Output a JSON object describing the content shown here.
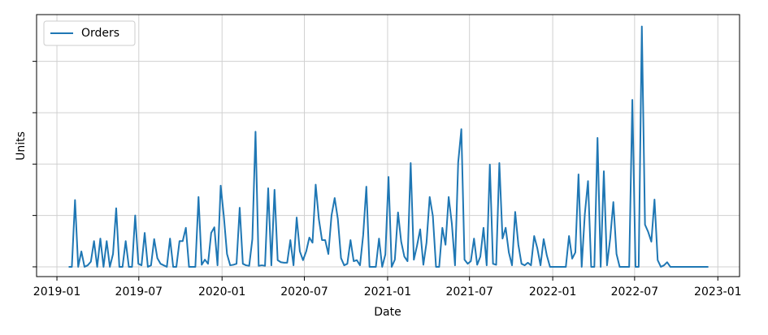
{
  "chart_data": {
    "type": "line",
    "xlabel": "Date",
    "ylabel": "Units",
    "grid": true,
    "legend": "upper left",
    "ytick_labels": false,
    "xlim": [
      "2018-11-17",
      "2023-02-18"
    ],
    "xticks": [
      {
        "value": "2019-01-01",
        "label": "2019-01"
      },
      {
        "value": "2019-07-01",
        "label": "2019-07"
      },
      {
        "value": "2020-01-01",
        "label": "2020-01"
      },
      {
        "value": "2020-07-01",
        "label": "2020-07"
      },
      {
        "value": "2021-01-01",
        "label": "2021-01"
      },
      {
        "value": "2021-07-01",
        "label": "2021-07"
      },
      {
        "value": "2022-01-01",
        "label": "2022-01"
      },
      {
        "value": "2022-07-01",
        "label": "2022-07"
      },
      {
        "value": "2023-01-01",
        "label": "2023-01"
      }
    ],
    "ylim": [
      -1.9,
      49.1
    ],
    "yticks": [
      0,
      10,
      20,
      30,
      40
    ],
    "x": [
      "2019-01-27",
      "2019-02-03",
      "2019-02-10",
      "2019-02-17",
      "2019-02-24",
      "2019-03-03",
      "2019-03-10",
      "2019-03-17",
      "2019-03-24",
      "2019-03-31",
      "2019-04-07",
      "2019-04-14",
      "2019-04-21",
      "2019-04-28",
      "2019-05-05",
      "2019-05-12",
      "2019-05-19",
      "2019-05-26",
      "2019-06-02",
      "2019-06-09",
      "2019-06-16",
      "2019-06-23",
      "2019-06-30",
      "2019-07-07",
      "2019-07-14",
      "2019-07-21",
      "2019-07-28",
      "2019-08-04",
      "2019-08-11",
      "2019-08-18",
      "2019-08-25",
      "2019-09-01",
      "2019-09-08",
      "2019-09-15",
      "2019-09-22",
      "2019-09-29",
      "2019-10-06",
      "2019-10-13",
      "2019-10-20",
      "2019-10-27",
      "2019-11-03",
      "2019-11-10",
      "2019-11-17",
      "2019-11-24",
      "2019-12-01",
      "2019-12-08",
      "2019-12-15",
      "2019-12-22",
      "2019-12-29",
      "2020-01-05",
      "2020-01-12",
      "2020-01-19",
      "2020-01-26",
      "2020-02-02",
      "2020-02-09",
      "2020-02-16",
      "2020-02-23",
      "2020-03-01",
      "2020-03-08",
      "2020-03-15",
      "2020-03-22",
      "2020-03-29",
      "2020-04-05",
      "2020-04-12",
      "2020-04-19",
      "2020-04-26",
      "2020-05-03",
      "2020-05-10",
      "2020-05-17",
      "2020-05-24",
      "2020-05-31",
      "2020-06-07",
      "2020-06-14",
      "2020-06-21",
      "2020-06-28",
      "2020-07-05",
      "2020-07-12",
      "2020-07-19",
      "2020-07-26",
      "2020-08-02",
      "2020-08-09",
      "2020-08-16",
      "2020-08-23",
      "2020-08-30",
      "2020-09-06",
      "2020-09-13",
      "2020-09-20",
      "2020-09-27",
      "2020-10-04",
      "2020-10-11",
      "2020-10-18",
      "2020-10-25",
      "2020-11-01",
      "2020-11-08",
      "2020-11-15",
      "2020-11-22",
      "2020-11-29",
      "2020-12-06",
      "2020-12-13",
      "2020-12-20",
      "2020-12-27",
      "2021-01-03",
      "2021-01-10",
      "2021-01-17",
      "2021-01-24",
      "2021-01-31",
      "2021-02-07",
      "2021-02-14",
      "2021-02-21",
      "2021-02-28",
      "2021-03-07",
      "2021-03-14",
      "2021-03-21",
      "2021-03-28",
      "2021-04-04",
      "2021-04-11",
      "2021-04-18",
      "2021-04-25",
      "2021-05-02",
      "2021-05-09",
      "2021-05-16",
      "2021-05-23",
      "2021-05-30",
      "2021-06-06",
      "2021-06-13",
      "2021-06-20",
      "2021-06-27",
      "2021-07-04",
      "2021-07-11",
      "2021-07-18",
      "2021-07-25",
      "2021-08-01",
      "2021-08-08",
      "2021-08-15",
      "2021-08-22",
      "2021-08-29",
      "2021-09-05",
      "2021-09-12",
      "2021-09-19",
      "2021-09-26",
      "2021-10-03",
      "2021-10-10",
      "2021-10-17",
      "2021-10-24",
      "2021-10-31",
      "2021-11-07",
      "2021-11-14",
      "2021-11-21",
      "2021-11-28",
      "2021-12-05",
      "2021-12-12",
      "2021-12-19",
      "2021-12-26",
      "2022-01-02",
      "2022-01-09",
      "2022-01-16",
      "2022-01-23",
      "2022-01-30",
      "2022-02-06",
      "2022-02-13",
      "2022-02-20",
      "2022-02-27",
      "2022-03-06",
      "2022-03-13",
      "2022-03-20",
      "2022-03-27",
      "2022-04-03",
      "2022-04-10",
      "2022-04-17",
      "2022-04-24",
      "2022-05-01",
      "2022-05-08",
      "2022-05-15",
      "2022-05-22",
      "2022-05-29",
      "2022-06-05",
      "2022-06-12",
      "2022-06-19",
      "2022-06-26",
      "2022-07-03",
      "2022-07-10",
      "2022-07-17",
      "2022-07-24",
      "2022-07-31",
      "2022-08-07",
      "2022-08-14",
      "2022-08-21",
      "2022-08-28",
      "2022-09-04",
      "2022-09-11",
      "2022-09-18",
      "2022-09-25",
      "2022-10-02",
      "2022-10-09",
      "2022-10-16",
      "2022-10-23",
      "2022-10-30",
      "2022-11-06",
      "2022-11-13",
      "2022-11-20",
      "2022-11-27",
      "2022-12-04",
      "2022-12-11"
    ],
    "series": [
      {
        "name": "Orders",
        "color": "#1f77b4",
        "values": [
          0,
          0,
          13,
          0,
          3,
          0,
          0.3,
          1,
          5,
          0,
          5.5,
          0,
          5,
          0,
          2.5,
          11.4,
          0,
          0,
          5,
          0,
          0,
          10,
          0.6,
          0.3,
          6.6,
          0,
          0.3,
          5.4,
          1.7,
          0.6,
          0.3,
          0,
          5.5,
          0,
          0,
          5,
          5,
          7.6,
          0,
          0,
          0,
          13.6,
          0.4,
          1.4,
          0.6,
          6.6,
          7.7,
          0.3,
          15.8,
          9.8,
          2.5,
          0.3,
          0.4,
          0.6,
          11.5,
          0.6,
          0.3,
          0.2,
          5.4,
          26.3,
          0.2,
          0.3,
          0.2,
          15.3,
          0.3,
          15,
          1.3,
          0.9,
          0.8,
          0.8,
          5.2,
          0.3,
          9.6,
          3,
          1.3,
          3,
          5.7,
          4.7,
          16,
          9.3,
          5.2,
          5.2,
          2.5,
          10,
          13.4,
          9.3,
          1.7,
          0.3,
          0.6,
          5.2,
          1.1,
          1.3,
          0.3,
          6.2,
          15.6,
          0,
          0,
          0,
          5.5,
          0,
          2.4,
          17.5,
          0,
          1.4,
          10.6,
          4.9,
          2,
          1.1,
          20.2,
          1.4,
          4.1,
          7.3,
          0.4,
          4.7,
          13.6,
          9.9,
          0,
          0,
          7.6,
          4.3,
          13.6,
          8.4,
          0.3,
          20.3,
          26.8,
          1.4,
          0.6,
          1.1,
          5.5,
          0.4,
          2,
          7.6,
          0.3,
          19.9,
          0.6,
          0.4,
          20.2,
          5.5,
          7.6,
          2.8,
          0.3,
          10.7,
          4.3,
          0.6,
          0.3,
          0.8,
          0.3,
          6,
          3.6,
          0.3,
          5.4,
          2.2,
          0,
          0,
          0,
          0,
          0,
          0,
          6,
          1.6,
          2.8,
          18,
          0,
          10.3,
          16.7,
          0,
          0,
          25.1,
          0,
          18.6,
          0.3,
          5.5,
          12.6,
          2.5,
          0,
          0,
          0,
          0,
          32.5,
          0,
          0,
          46.8,
          8.2,
          6.8,
          4.9,
          13.1,
          1.3,
          0,
          0.3,
          0.9,
          0,
          0,
          0,
          0,
          0,
          0,
          0,
          0,
          0,
          0,
          0,
          0,
          0
        ]
      }
    ]
  }
}
